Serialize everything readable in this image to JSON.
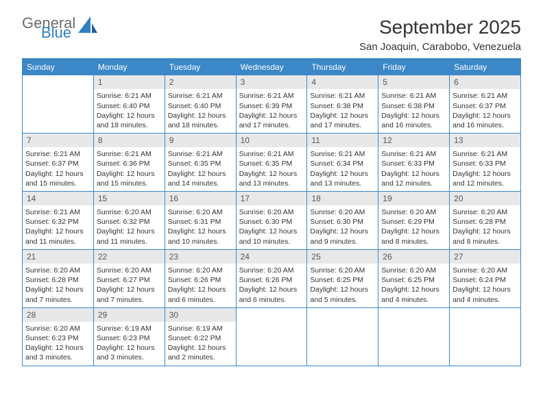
{
  "brand": {
    "general": "General",
    "blue": "Blue"
  },
  "title": "September 2025",
  "location": "San Joaquin, Carabobo, Venezuela",
  "colors": {
    "header_bg": "#3b87c8",
    "header_text": "#ffffff",
    "daynum_bg": "#e8e8e8",
    "border": "#3b87c8",
    "text": "#333333",
    "logo_gray": "#6b6b6b",
    "logo_blue": "#2f7fc4"
  },
  "layout": {
    "columns": 7,
    "rows": 5,
    "font_size_body": 10.5,
    "font_size_header": 12,
    "font_size_title": 28
  },
  "weekdays": [
    "Sunday",
    "Monday",
    "Tuesday",
    "Wednesday",
    "Thursday",
    "Friday",
    "Saturday"
  ],
  "days": [
    {
      "num": "",
      "sunrise": "",
      "sunset": "",
      "daylight": ""
    },
    {
      "num": "1",
      "sunrise": "Sunrise: 6:21 AM",
      "sunset": "Sunset: 6:40 PM",
      "daylight": "Daylight: 12 hours and 18 minutes."
    },
    {
      "num": "2",
      "sunrise": "Sunrise: 6:21 AM",
      "sunset": "Sunset: 6:40 PM",
      "daylight": "Daylight: 12 hours and 18 minutes."
    },
    {
      "num": "3",
      "sunrise": "Sunrise: 6:21 AM",
      "sunset": "Sunset: 6:39 PM",
      "daylight": "Daylight: 12 hours and 17 minutes."
    },
    {
      "num": "4",
      "sunrise": "Sunrise: 6:21 AM",
      "sunset": "Sunset: 6:38 PM",
      "daylight": "Daylight: 12 hours and 17 minutes."
    },
    {
      "num": "5",
      "sunrise": "Sunrise: 6:21 AM",
      "sunset": "Sunset: 6:38 PM",
      "daylight": "Daylight: 12 hours and 16 minutes."
    },
    {
      "num": "6",
      "sunrise": "Sunrise: 6:21 AM",
      "sunset": "Sunset: 6:37 PM",
      "daylight": "Daylight: 12 hours and 16 minutes."
    },
    {
      "num": "7",
      "sunrise": "Sunrise: 6:21 AM",
      "sunset": "Sunset: 6:37 PM",
      "daylight": "Daylight: 12 hours and 15 minutes."
    },
    {
      "num": "8",
      "sunrise": "Sunrise: 6:21 AM",
      "sunset": "Sunset: 6:36 PM",
      "daylight": "Daylight: 12 hours and 15 minutes."
    },
    {
      "num": "9",
      "sunrise": "Sunrise: 6:21 AM",
      "sunset": "Sunset: 6:35 PM",
      "daylight": "Daylight: 12 hours and 14 minutes."
    },
    {
      "num": "10",
      "sunrise": "Sunrise: 6:21 AM",
      "sunset": "Sunset: 6:35 PM",
      "daylight": "Daylight: 12 hours and 13 minutes."
    },
    {
      "num": "11",
      "sunrise": "Sunrise: 6:21 AM",
      "sunset": "Sunset: 6:34 PM",
      "daylight": "Daylight: 12 hours and 13 minutes."
    },
    {
      "num": "12",
      "sunrise": "Sunrise: 6:21 AM",
      "sunset": "Sunset: 6:33 PM",
      "daylight": "Daylight: 12 hours and 12 minutes."
    },
    {
      "num": "13",
      "sunrise": "Sunrise: 6:21 AM",
      "sunset": "Sunset: 6:33 PM",
      "daylight": "Daylight: 12 hours and 12 minutes."
    },
    {
      "num": "14",
      "sunrise": "Sunrise: 6:21 AM",
      "sunset": "Sunset: 6:32 PM",
      "daylight": "Daylight: 12 hours and 11 minutes."
    },
    {
      "num": "15",
      "sunrise": "Sunrise: 6:20 AM",
      "sunset": "Sunset: 6:32 PM",
      "daylight": "Daylight: 12 hours and 11 minutes."
    },
    {
      "num": "16",
      "sunrise": "Sunrise: 6:20 AM",
      "sunset": "Sunset: 6:31 PM",
      "daylight": "Daylight: 12 hours and 10 minutes."
    },
    {
      "num": "17",
      "sunrise": "Sunrise: 6:20 AM",
      "sunset": "Sunset: 6:30 PM",
      "daylight": "Daylight: 12 hours and 10 minutes."
    },
    {
      "num": "18",
      "sunrise": "Sunrise: 6:20 AM",
      "sunset": "Sunset: 6:30 PM",
      "daylight": "Daylight: 12 hours and 9 minutes."
    },
    {
      "num": "19",
      "sunrise": "Sunrise: 6:20 AM",
      "sunset": "Sunset: 6:29 PM",
      "daylight": "Daylight: 12 hours and 8 minutes."
    },
    {
      "num": "20",
      "sunrise": "Sunrise: 6:20 AM",
      "sunset": "Sunset: 6:28 PM",
      "daylight": "Daylight: 12 hours and 8 minutes."
    },
    {
      "num": "21",
      "sunrise": "Sunrise: 6:20 AM",
      "sunset": "Sunset: 6:28 PM",
      "daylight": "Daylight: 12 hours and 7 minutes."
    },
    {
      "num": "22",
      "sunrise": "Sunrise: 6:20 AM",
      "sunset": "Sunset: 6:27 PM",
      "daylight": "Daylight: 12 hours and 7 minutes."
    },
    {
      "num": "23",
      "sunrise": "Sunrise: 6:20 AM",
      "sunset": "Sunset: 6:26 PM",
      "daylight": "Daylight: 12 hours and 6 minutes."
    },
    {
      "num": "24",
      "sunrise": "Sunrise: 6:20 AM",
      "sunset": "Sunset: 6:26 PM",
      "daylight": "Daylight: 12 hours and 6 minutes."
    },
    {
      "num": "25",
      "sunrise": "Sunrise: 6:20 AM",
      "sunset": "Sunset: 6:25 PM",
      "daylight": "Daylight: 12 hours and 5 minutes."
    },
    {
      "num": "26",
      "sunrise": "Sunrise: 6:20 AM",
      "sunset": "Sunset: 6:25 PM",
      "daylight": "Daylight: 12 hours and 4 minutes."
    },
    {
      "num": "27",
      "sunrise": "Sunrise: 6:20 AM",
      "sunset": "Sunset: 6:24 PM",
      "daylight": "Daylight: 12 hours and 4 minutes."
    },
    {
      "num": "28",
      "sunrise": "Sunrise: 6:20 AM",
      "sunset": "Sunset: 6:23 PM",
      "daylight": "Daylight: 12 hours and 3 minutes."
    },
    {
      "num": "29",
      "sunrise": "Sunrise: 6:19 AM",
      "sunset": "Sunset: 6:23 PM",
      "daylight": "Daylight: 12 hours and 3 minutes."
    },
    {
      "num": "30",
      "sunrise": "Sunrise: 6:19 AM",
      "sunset": "Sunset: 6:22 PM",
      "daylight": "Daylight: 12 hours and 2 minutes."
    },
    {
      "num": "",
      "sunrise": "",
      "sunset": "",
      "daylight": ""
    },
    {
      "num": "",
      "sunrise": "",
      "sunset": "",
      "daylight": ""
    },
    {
      "num": "",
      "sunrise": "",
      "sunset": "",
      "daylight": ""
    },
    {
      "num": "",
      "sunrise": "",
      "sunset": "",
      "daylight": ""
    }
  ]
}
